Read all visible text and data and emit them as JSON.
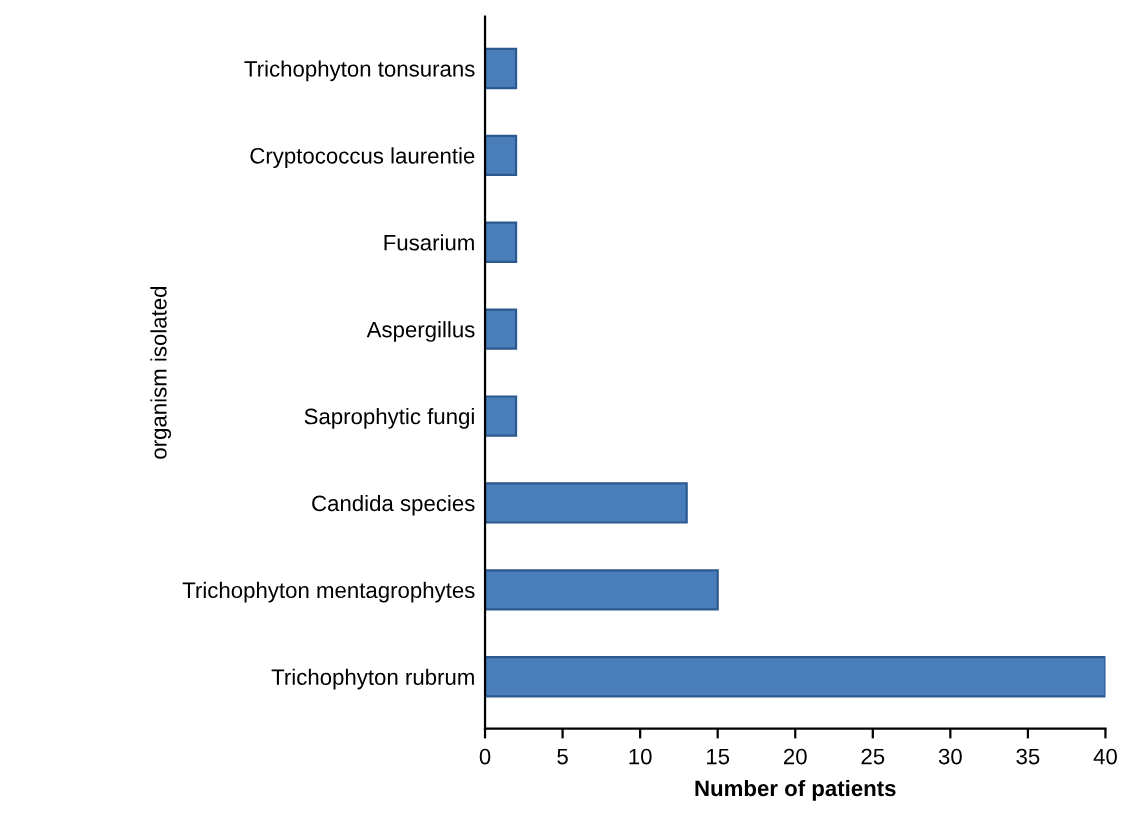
{
  "chart_data": {
    "type": "bar",
    "orientation": "horizontal",
    "categories": [
      "Trichophyton tonsurans",
      "Cryptococcus laurentie",
      "Fusarium",
      "Aspergillus",
      "Saprophytic fungi",
      "Candida species",
      "Trichophyton mentagrophytes",
      "Trichophyton rubrum"
    ],
    "values": [
      2,
      2,
      2,
      2,
      2,
      13,
      15,
      40
    ],
    "color": "#4a7ebb",
    "xlabel": "Number of patients",
    "ylabel": "organism isolated",
    "xlim": [
      0,
      40
    ],
    "xticks": [
      0,
      5,
      10,
      15,
      20,
      25,
      30,
      35,
      40
    ],
    "grid": false,
    "legend": false
  }
}
